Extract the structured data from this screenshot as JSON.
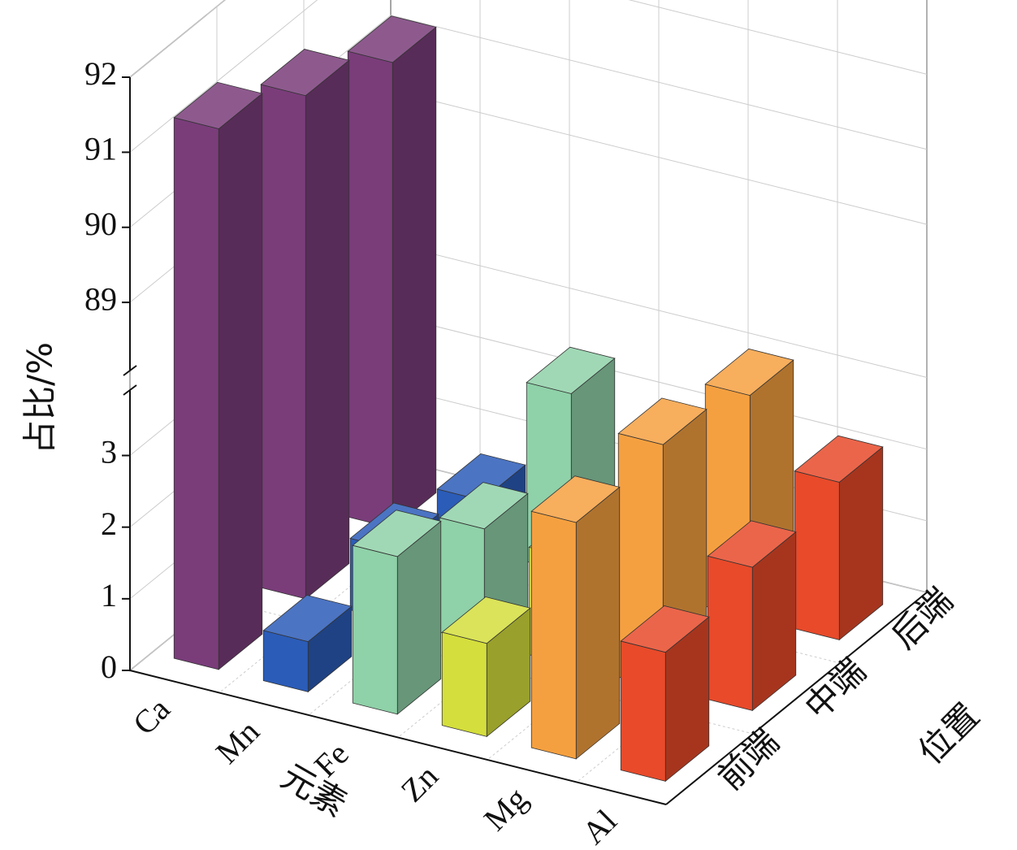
{
  "chart_data": {
    "type": "bar3d",
    "y_label": "占比/%",
    "x_label": "元素",
    "z_label": "位置",
    "categories": [
      "Ca",
      "Mn",
      "Fe",
      "Zn",
      "Mg",
      "Al"
    ],
    "colors": [
      "#7a3d7a",
      "#2b5cb8",
      "#8fd1a8",
      "#d4de3c",
      "#f5a040",
      "#e84a2a"
    ],
    "series": [
      {
        "name": "前端",
        "values": [
          91.3,
          0.7,
          2.2,
          1.3,
          3.3,
          1.8
        ]
      },
      {
        "name": "中端",
        "values": [
          90.8,
          1.0,
          1.6,
          1.5,
          3.4,
          2.0
        ]
      },
      {
        "name": "后端",
        "values": [
          90.3,
          0.7,
          2.5,
          1.2,
          3.1,
          2.2
        ]
      }
    ],
    "y_segments": [
      {
        "ylim": [
          0,
          3.8
        ],
        "yticks": [
          0,
          1,
          2,
          3
        ]
      },
      {
        "ylim": [
          88.2,
          92
        ],
        "yticks": [
          89,
          90,
          91,
          92
        ]
      }
    ],
    "grid": true
  }
}
